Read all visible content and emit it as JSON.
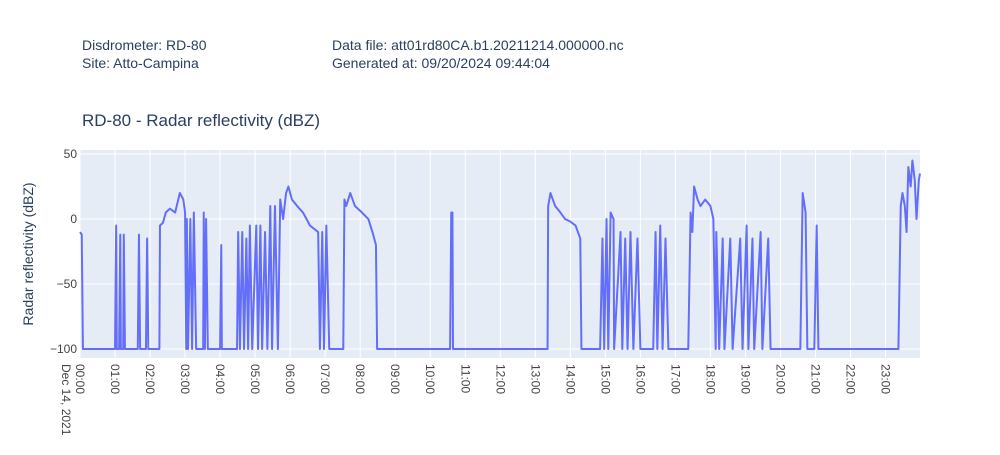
{
  "header": {
    "instrument": "Disdrometer: RD-80",
    "site": "Site: Atto-Campina",
    "data_file": "Data file: att01rd80CA.b1.20211214.000000.nc",
    "generated": "Generated at: 09/20/2024 09:44:04"
  },
  "chart_data": {
    "type": "line",
    "title": "RD-80 - Radar reflectivity  (dBZ)",
    "y_label": "Radar reflectivity  (dBZ)",
    "x_date_label": "Dec 14, 2021",
    "xlim": [
      "2021-12-14 00:00",
      "2021-12-14 23:59"
    ],
    "xticks": [
      {
        "value": "2021-12-14 00:00",
        "label": "00:00"
      },
      {
        "value": "2021-12-14 01:00",
        "label": "01:00"
      },
      {
        "value": "2021-12-14 02:00",
        "label": "02:00"
      },
      {
        "value": "2021-12-14 03:00",
        "label": "03:00"
      },
      {
        "value": "2021-12-14 04:00",
        "label": "04:00"
      },
      {
        "value": "2021-12-14 05:00",
        "label": "05:00"
      },
      {
        "value": "2021-12-14 06:00",
        "label": "06:00"
      },
      {
        "value": "2021-12-14 07:00",
        "label": "07:00"
      },
      {
        "value": "2021-12-14 08:00",
        "label": "08:00"
      },
      {
        "value": "2021-12-14 09:00",
        "label": "09:00"
      },
      {
        "value": "2021-12-14 10:00",
        "label": "10:00"
      },
      {
        "value": "2021-12-14 11:00",
        "label": "11:00"
      },
      {
        "value": "2021-12-14 12:00",
        "label": "12:00"
      },
      {
        "value": "2021-12-14 13:00",
        "label": "13:00"
      },
      {
        "value": "2021-12-14 14:00",
        "label": "14:00"
      },
      {
        "value": "2021-12-14 15:00",
        "label": "15:00"
      },
      {
        "value": "2021-12-14 16:00",
        "label": "16:00"
      },
      {
        "value": "2021-12-14 17:00",
        "label": "17:00"
      },
      {
        "value": "2021-12-14 18:00",
        "label": "18:00"
      },
      {
        "value": "2021-12-14 19:00",
        "label": "19:00"
      },
      {
        "value": "2021-12-14 20:00",
        "label": "20:00"
      },
      {
        "value": "2021-12-14 21:00",
        "label": "21:00"
      },
      {
        "value": "2021-12-14 22:00",
        "label": "22:00"
      },
      {
        "value": "2021-12-14 23:00",
        "label": "23:00"
      }
    ],
    "ylim": [
      -106.9,
      53.1
    ],
    "yticks": [
      {
        "value": -100,
        "label": "−100"
      },
      {
        "value": -50,
        "label": "−50"
      },
      0,
      50
    ],
    "grid": true,
    "color": "#636efa",
    "x": [
      "2021-12-14 00:00",
      "2021-12-14 00:03",
      "2021-12-14 00:05",
      "2021-12-14 01:00",
      "2021-12-14 01:02",
      "2021-12-14 01:03",
      "2021-12-14 01:07",
      "2021-12-14 01:09",
      "2021-12-14 01:10",
      "2021-12-14 01:14",
      "2021-12-14 01:15",
      "2021-12-14 01:17",
      "2021-12-14 01:39",
      "2021-12-14 01:41",
      "2021-12-14 01:43",
      "2021-12-14 01:53",
      "2021-12-14 01:55",
      "2021-12-14 01:57",
      "2021-12-14 02:16",
      "2021-12-14 02:17",
      "2021-12-14 02:22",
      "2021-12-14 02:27",
      "2021-12-14 02:34",
      "2021-12-14 02:43",
      "2021-12-14 02:51",
      "2021-12-14 02:57",
      "2021-12-14 03:00",
      "2021-12-14 03:02",
      "2021-12-14 03:03",
      "2021-12-14 03:05",
      "2021-12-14 03:09",
      "2021-12-14 03:12",
      "2021-12-14 03:15",
      "2021-12-14 03:19",
      "2021-12-14 03:31",
      "2021-12-14 03:32",
      "2021-12-14 03:34",
      "2021-12-14 03:36",
      "2021-12-14 03:39",
      "2021-12-14 04:00",
      "2021-12-14 04:02",
      "2021-12-14 04:03",
      "2021-12-14 04:29",
      "2021-12-14 04:31",
      "2021-12-14 04:34",
      "2021-12-14 04:38",
      "2021-12-14 04:41",
      "2021-12-14 04:45",
      "2021-12-14 04:48",
      "2021-12-14 04:51",
      "2021-12-14 04:55",
      "2021-12-14 05:02",
      "2021-12-14 05:05",
      "2021-12-14 05:09",
      "2021-12-14 05:12",
      "2021-12-14 05:17",
      "2021-12-14 05:21",
      "2021-12-14 05:26",
      "2021-12-14 05:29",
      "2021-12-14 05:34",
      "2021-12-14 05:39",
      "2021-12-14 05:43",
      "2021-12-14 05:48",
      "2021-12-14 05:53",
      "2021-12-14 05:57",
      "2021-12-14 06:03",
      "2021-12-14 06:12",
      "2021-12-14 06:22",
      "2021-12-14 06:34",
      "2021-12-14 06:48",
      "2021-12-14 06:51",
      "2021-12-14 06:55",
      "2021-12-14 06:58",
      "2021-12-14 07:02",
      "2021-12-14 07:07",
      "2021-12-14 07:31",
      "2021-12-14 07:33",
      "2021-12-14 07:36",
      "2021-12-14 07:43",
      "2021-12-14 07:51",
      "2021-12-14 08:03",
      "2021-12-14 08:14",
      "2021-12-14 08:21",
      "2021-12-14 08:27",
      "2021-12-14 08:29",
      "2021-12-14 10:34",
      "2021-12-14 10:36",
      "2021-12-14 10:38",
      "2021-12-14 10:39",
      "2021-12-14 13:21",
      "2021-12-14 13:22",
      "2021-12-14 13:26",
      "2021-12-14 13:34",
      "2021-12-14 13:43",
      "2021-12-14 13:51",
      "2021-12-14 14:00",
      "2021-12-14 14:09",
      "2021-12-14 14:17",
      "2021-12-14 14:19",
      "2021-12-14 14:51",
      "2021-12-14 14:55",
      "2021-12-14 14:58",
      "2021-12-14 15:02",
      "2021-12-14 15:05",
      "2021-12-14 15:09",
      "2021-12-14 15:14",
      "2021-12-14 15:15",
      "2021-12-14 15:26",
      "2021-12-14 15:29",
      "2021-12-14 15:34",
      "2021-12-14 15:38",
      "2021-12-14 15:43",
      "2021-12-14 15:48",
      "2021-12-14 15:55",
      "2021-12-14 16:00",
      "2021-12-14 16:22",
      "2021-12-14 16:26",
      "2021-12-14 16:29",
      "2021-12-14 16:34",
      "2021-12-14 16:38",
      "2021-12-14 16:43",
      "2021-12-14 16:48",
      "2021-12-14 17:22",
      "2021-12-14 17:26",
      "2021-12-14 17:29",
      "2021-12-14 17:32",
      "2021-12-14 17:38",
      "2021-12-14 17:43",
      "2021-12-14 17:51",
      "2021-12-14 18:00",
      "2021-12-14 18:05",
      "2021-12-14 18:09",
      "2021-12-14 18:10",
      "2021-12-14 18:15",
      "2021-12-14 18:21",
      "2021-12-14 18:24",
      "2021-12-14 18:34",
      "2021-12-14 18:38",
      "2021-12-14 18:51",
      "2021-12-14 18:55",
      "2021-12-14 19:02",
      "2021-12-14 19:05",
      "2021-12-14 19:12",
      "2021-12-14 19:15",
      "2021-12-14 19:26",
      "2021-12-14 19:29",
      "2021-12-14 19:39",
      "2021-12-14 19:43",
      "2021-12-14 20:34",
      "2021-12-14 20:38",
      "2021-12-14 20:43",
      "2021-12-14 20:46",
      "2021-12-14 20:58",
      "2021-12-14 21:02",
      "2021-12-14 21:05",
      "2021-12-14 23:22",
      "2021-12-14 23:26",
      "2021-12-14 23:29",
      "2021-12-14 23:33",
      "2021-12-14 23:36",
      "2021-12-14 23:39",
      "2021-12-14 23:43",
      "2021-12-14 23:46",
      "2021-12-14 23:50",
      "2021-12-14 23:53",
      "2021-12-14 23:57",
      "2021-12-14 23:59"
    ],
    "values": [
      -10,
      -12,
      -100,
      -100,
      -5,
      -100,
      -100,
      -12,
      -100,
      -100,
      -12,
      -100,
      -100,
      -12,
      -100,
      -100,
      -15,
      -100,
      -100,
      -5,
      -3,
      5,
      8,
      5,
      20,
      15,
      5,
      -100,
      0,
      -100,
      0,
      -100,
      5,
      -100,
      -100,
      5,
      -100,
      0,
      -100,
      -100,
      -20,
      -100,
      -100,
      -10,
      -100,
      -10,
      -100,
      -15,
      -100,
      -5,
      -100,
      -5,
      -100,
      -5,
      -100,
      -10,
      -100,
      10,
      -100,
      10,
      -100,
      15,
      0,
      20,
      25,
      15,
      10,
      5,
      -5,
      -10,
      -100,
      -10,
      -100,
      -5,
      -100,
      -100,
      15,
      10,
      20,
      10,
      5,
      0,
      -10,
      -20,
      -100,
      -100,
      5,
      5,
      -100,
      -100,
      10,
      20,
      10,
      5,
      0,
      -2,
      -5,
      -15,
      -100,
      -100,
      -15,
      -100,
      0,
      -100,
      5,
      0,
      -100,
      -10,
      -100,
      -15,
      -100,
      -10,
      -100,
      -15,
      -100,
      -100,
      -10,
      -100,
      -5,
      -100,
      -15,
      -100,
      -100,
      5,
      -10,
      25,
      15,
      10,
      15,
      10,
      0,
      -100,
      -10,
      -100,
      -15,
      -100,
      -15,
      -100,
      -15,
      -100,
      -5,
      -100,
      -15,
      -100,
      -10,
      -100,
      -15,
      -100,
      -100,
      20,
      5,
      -100,
      -100,
      -5,
      -100,
      -100,
      10,
      20,
      10,
      -10,
      40,
      25,
      45,
      30,
      0,
      30,
      35
    ]
  }
}
